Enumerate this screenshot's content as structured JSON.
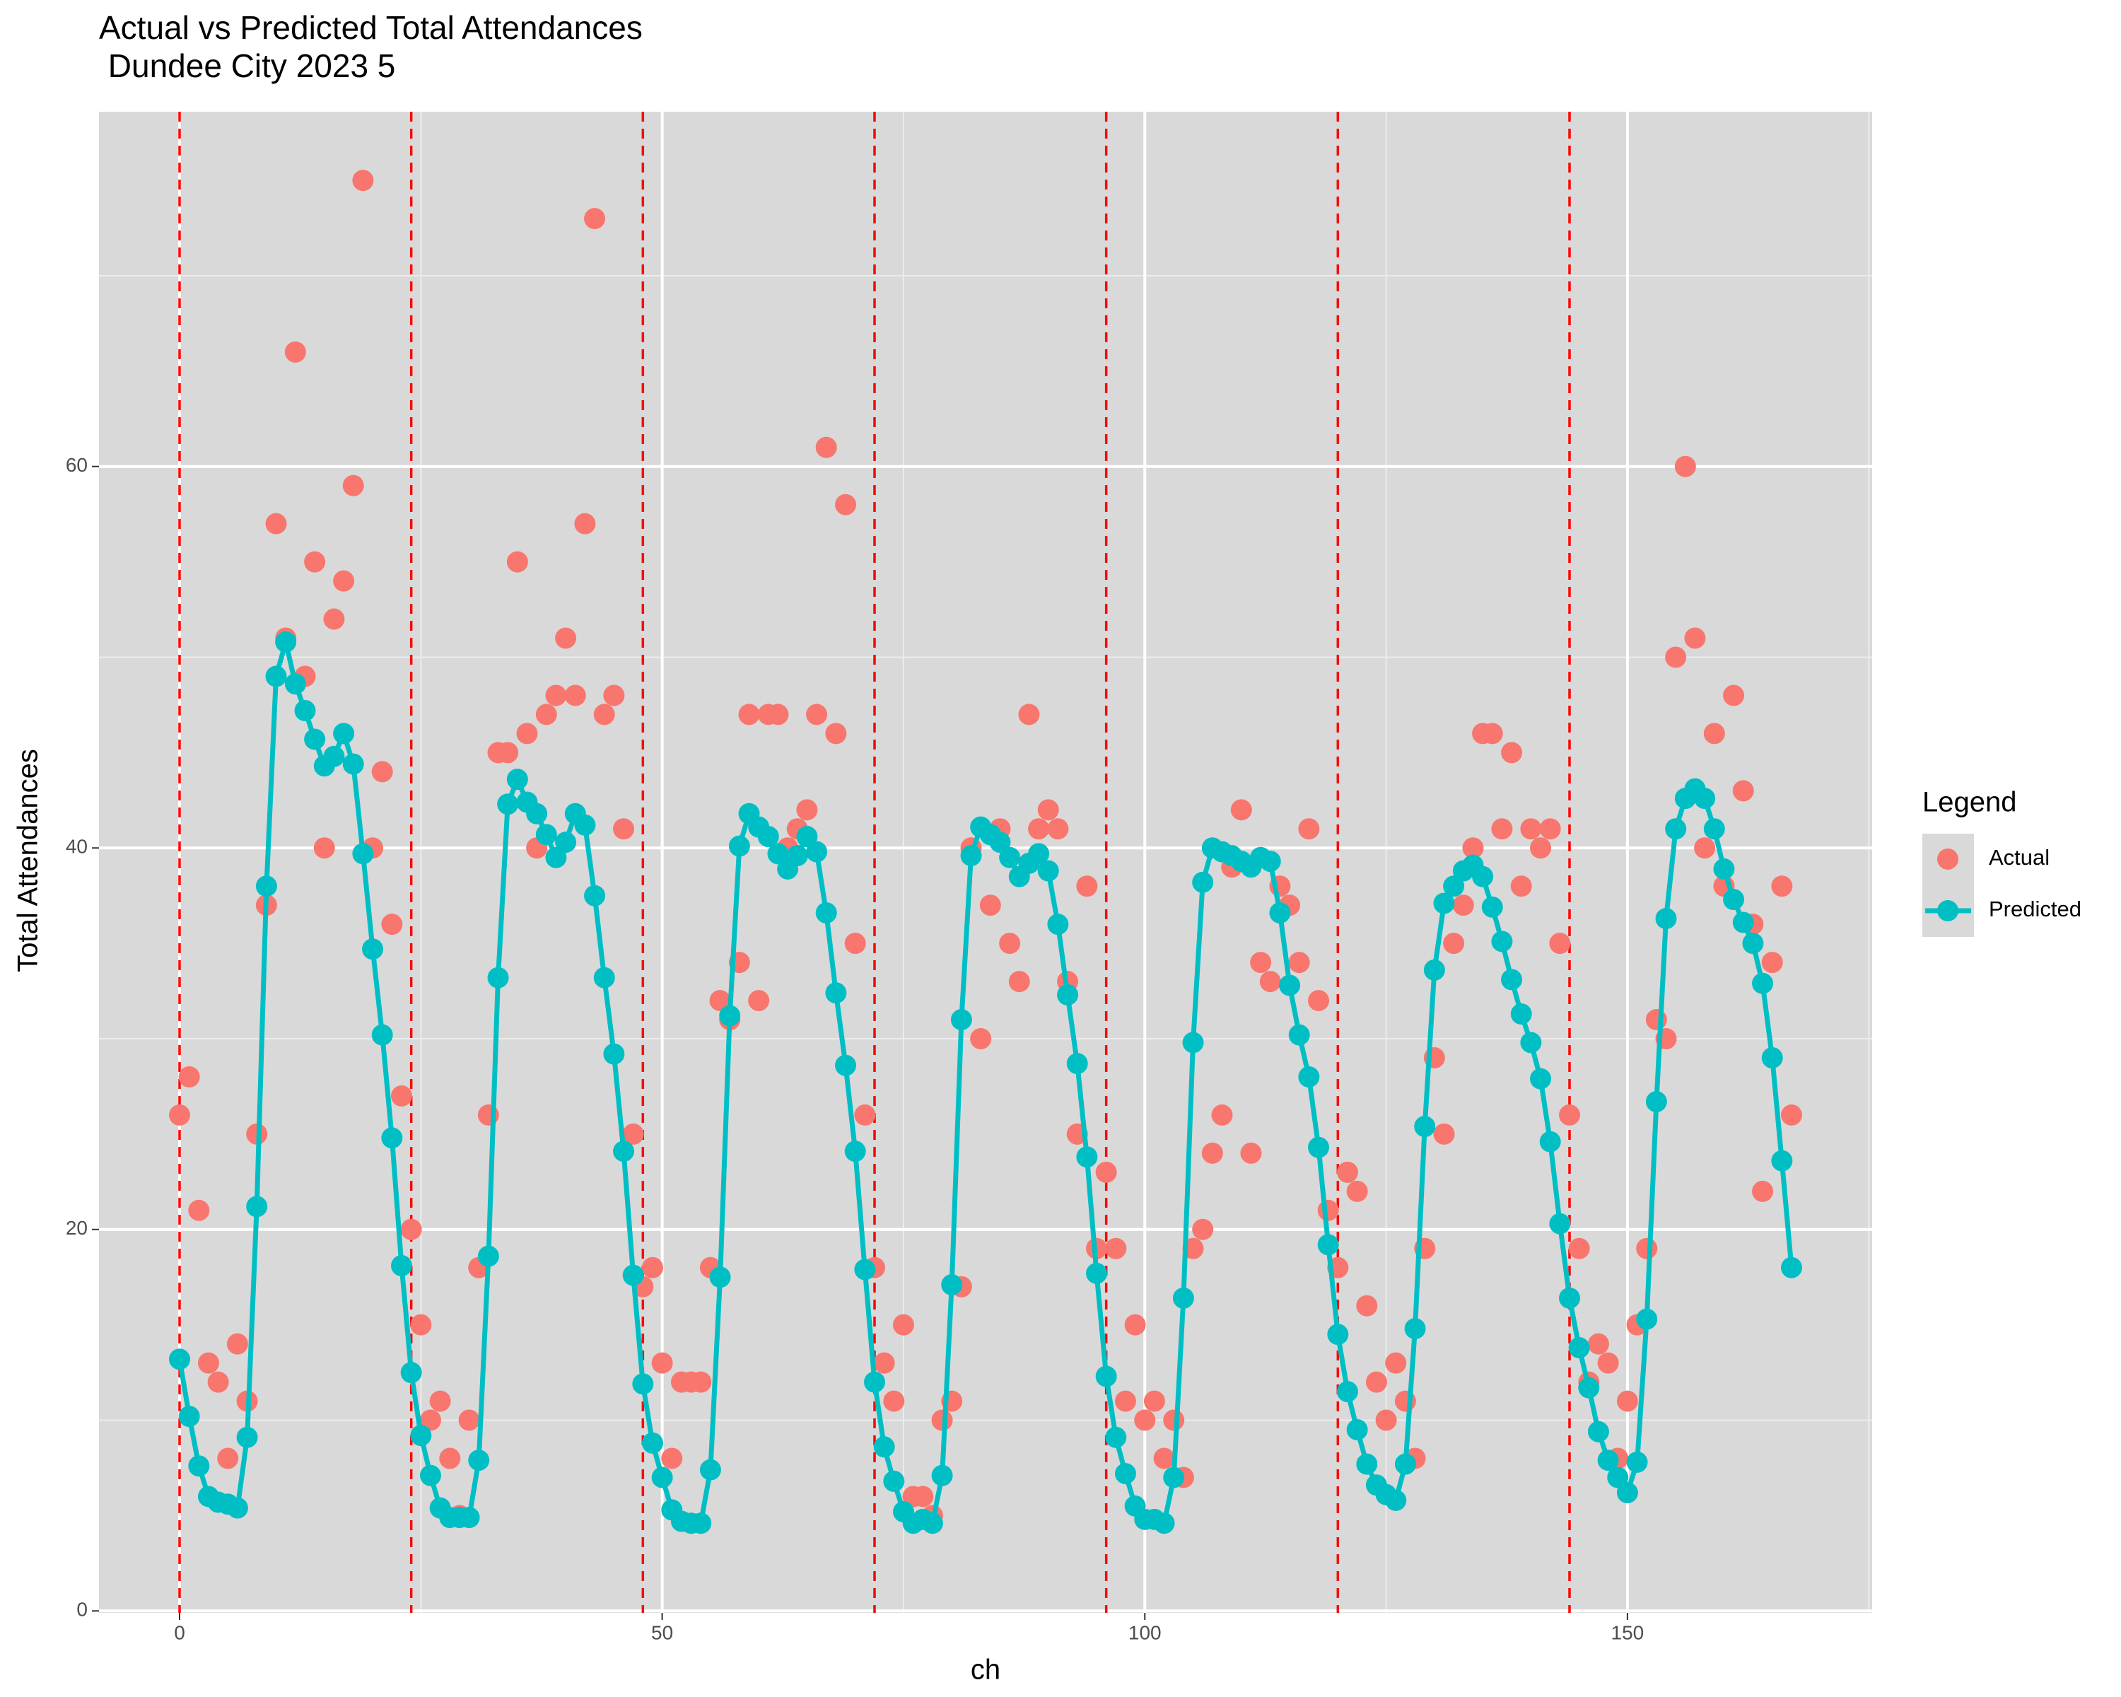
{
  "chart_data": {
    "type": "line",
    "title": "Actual vs Predicted Total Attendances\n Dundee City 2023 5",
    "x_label": "ch",
    "y_label": "Total Attendances",
    "legend_title": "Legend",
    "legend_position": "right",
    "grid": true,
    "xlim": [
      -8.35,
      175.35
    ],
    "ylim": [
      -0.1,
      78.6
    ],
    "xticks": [
      0,
      50,
      100,
      150
    ],
    "yticks": [
      0,
      20,
      40,
      60
    ],
    "minor_xticks": [
      25,
      75,
      125,
      175
    ],
    "minor_yticks": [
      10,
      30,
      50,
      70
    ],
    "vlines": [
      0,
      24,
      48,
      72,
      96,
      120,
      144
    ],
    "vline_color": "#ff0000",
    "x": [
      0,
      1,
      2,
      3,
      4,
      5,
      6,
      7,
      8,
      9,
      10,
      11,
      12,
      13,
      14,
      15,
      16,
      17,
      18,
      19,
      20,
      21,
      22,
      23,
      24,
      25,
      26,
      27,
      28,
      29,
      30,
      31,
      32,
      33,
      34,
      35,
      36,
      37,
      38,
      39,
      40,
      41,
      42,
      43,
      44,
      45,
      46,
      47,
      48,
      49,
      50,
      51,
      52,
      53,
      54,
      55,
      56,
      57,
      58,
      59,
      60,
      61,
      62,
      63,
      64,
      65,
      66,
      67,
      68,
      69,
      70,
      71,
      72,
      73,
      74,
      75,
      76,
      77,
      78,
      79,
      80,
      81,
      82,
      83,
      84,
      85,
      86,
      87,
      88,
      89,
      90,
      91,
      92,
      93,
      94,
      95,
      96,
      97,
      98,
      99,
      100,
      101,
      102,
      103,
      104,
      105,
      106,
      107,
      108,
      109,
      110,
      111,
      112,
      113,
      114,
      115,
      116,
      117,
      118,
      119,
      120,
      121,
      122,
      123,
      124,
      125,
      126,
      127,
      128,
      129,
      130,
      131,
      132,
      133,
      134,
      135,
      136,
      137,
      138,
      139,
      140,
      141,
      142,
      143,
      144,
      145,
      146,
      147,
      148,
      149,
      150,
      151,
      152,
      153,
      154,
      155,
      156,
      157,
      158,
      159,
      160,
      161,
      162,
      163,
      164,
      165,
      166,
      167
    ],
    "series": [
      {
        "name": "Actual",
        "type": "scatter",
        "color": "#f8766d",
        "values": [
          26,
          28,
          21,
          13,
          12,
          8,
          14,
          11,
          25,
          37,
          57,
          51,
          66,
          49,
          55,
          40,
          52,
          54,
          59,
          75,
          40,
          44,
          36,
          27,
          20,
          15,
          10,
          11,
          8,
          5,
          10,
          18,
          26,
          45,
          45,
          55,
          46,
          40,
          47,
          48,
          51,
          48,
          57,
          73,
          47,
          48,
          41,
          25,
          17,
          18,
          13,
          8,
          12,
          12,
          12,
          18,
          32,
          31,
          34,
          47,
          32,
          47,
          47,
          40,
          41,
          42,
          47,
          61,
          46,
          58,
          35,
          26,
          18,
          13,
          11,
          15,
          6,
          6,
          5,
          10,
          11,
          17,
          40,
          30,
          37,
          41,
          35,
          33,
          47,
          41,
          42,
          41,
          33,
          25,
          38,
          19,
          23,
          19,
          11,
          15,
          10,
          11,
          8,
          10,
          7,
          19,
          20,
          24,
          26,
          39,
          42,
          24,
          34,
          33,
          38,
          37,
          34,
          41,
          32,
          21,
          18,
          23,
          22,
          16,
          12,
          10,
          13,
          11,
          8,
          19,
          29,
          25,
          35,
          37,
          40,
          46,
          46,
          41,
          45,
          38,
          41,
          40,
          41,
          35,
          26,
          19,
          12,
          14,
          13,
          8,
          11,
          15,
          19,
          31,
          30,
          50,
          60,
          51,
          40,
          46,
          38,
          48,
          43,
          36,
          22,
          34,
          38,
          26
        ]
      },
      {
        "name": "Predicted",
        "type": "line",
        "color": "#00bfc4",
        "values": [
          13.2,
          10.2,
          7.6,
          6.0,
          5.7,
          5.6,
          5.4,
          9.1,
          21.2,
          38,
          49,
          50.8,
          48.6,
          47.2,
          45.7,
          44.3,
          44.8,
          46,
          44.4,
          39.7,
          34.7,
          30.2,
          24.8,
          18.1,
          12.5,
          9.2,
          7.1,
          5.4,
          4.9,
          4.9,
          4.9,
          7.9,
          18.6,
          33.2,
          42.3,
          43.6,
          42.4,
          41.8,
          40.7,
          39.5,
          40.3,
          41.8,
          41.2,
          37.5,
          33.2,
          29.2,
          24.1,
          17.6,
          11.9,
          8.8,
          7,
          5.3,
          4.7,
          4.6,
          4.6,
          7.4,
          17.5,
          31.2,
          40.1,
          41.8,
          41.1,
          40.6,
          39.7,
          38.9,
          39.6,
          40.6,
          39.8,
          36.6,
          32.4,
          28.6,
          24.1,
          17.9,
          12,
          8.6,
          6.8,
          5.2,
          4.6,
          4.8,
          4.6,
          7.1,
          17.1,
          31,
          39.6,
          41.1,
          40.7,
          40.3,
          39.5,
          38.5,
          39.2,
          39.7,
          38.8,
          36,
          32.3,
          28.7,
          23.8,
          17.7,
          12.3,
          9.1,
          7.2,
          5.5,
          4.8,
          4.8,
          4.6,
          7,
          16.4,
          29.8,
          38.2,
          40,
          39.8,
          39.6,
          39.3,
          39,
          39.5,
          39.3,
          36.6,
          32.8,
          30.2,
          28,
          24.3,
          19.2,
          14.5,
          11.5,
          9.5,
          7.7,
          6.6,
          6.1,
          5.8,
          7.7,
          14.8,
          25.4,
          33.6,
          37.1,
          38,
          38.8,
          39.1,
          38.5,
          36.9,
          35.1,
          33.1,
          31.3,
          29.8,
          27.9,
          24.6,
          20.3,
          16.4,
          13.8,
          11.7,
          9.4,
          7.9,
          7,
          6.2,
          7.8,
          15.3,
          26.7,
          36.3,
          41,
          42.6,
          43.1,
          42.6,
          41,
          38.9,
          37.3,
          36.1,
          35,
          32.9,
          29,
          23.6,
          18
        ]
      }
    ]
  }
}
